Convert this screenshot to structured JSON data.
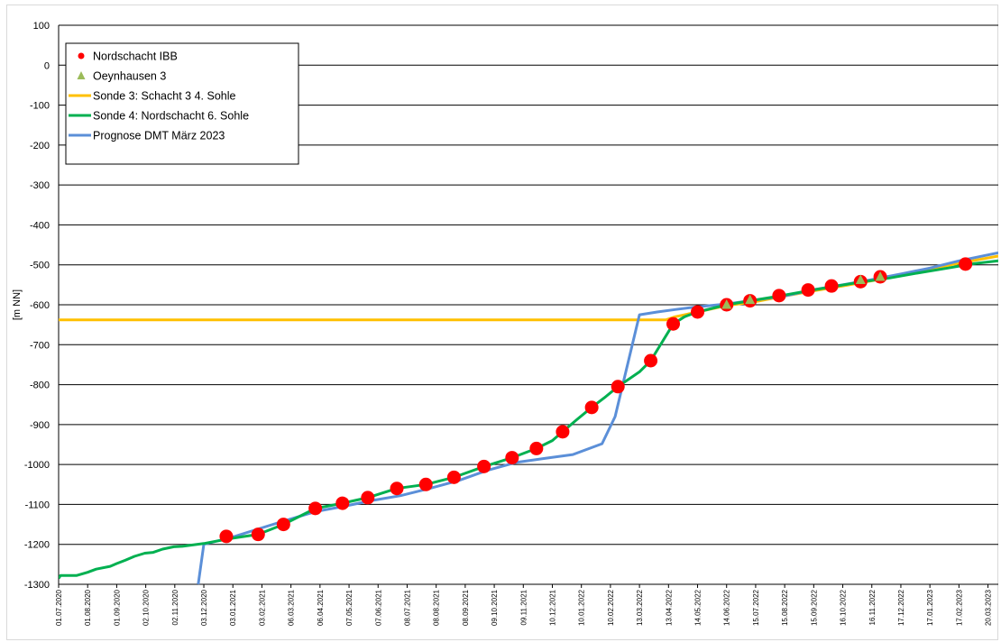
{
  "chart_data": {
    "type": "line",
    "title": "",
    "xlabel": "",
    "ylabel": "[m NN]",
    "ylim": [
      -1300,
      100
    ],
    "yticks": [
      100,
      0,
      -100,
      -200,
      -300,
      -400,
      -500,
      -600,
      -700,
      -800,
      -900,
      -1000,
      -1100,
      -1200,
      -1300
    ],
    "xlim": [
      "2020-07-01",
      "2023-03-31"
    ],
    "x_tick_labels": [
      "01.07.2020",
      "01.08.2020",
      "01.09.2020",
      "02.10.2020",
      "02.11.2020",
      "03.12.2020",
      "03.01.2021",
      "03.02.2021",
      "06.03.2021",
      "06.04.2021",
      "07.05.2021",
      "07.06.2021",
      "08.07.2021",
      "08.08.2021",
      "08.09.2021",
      "09.10.2021",
      "09.11.2021",
      "10.12.2021",
      "10.01.2022",
      "10.02.2022",
      "13.03.2022",
      "13.04.2022",
      "14.05.2022",
      "14.06.2022",
      "15.07.2022",
      "15.08.2022",
      "15.09.2022",
      "16.10.2022",
      "16.11.2022",
      "17.12.2022",
      "17.01.2023",
      "17.02.2023",
      "20.03.2023"
    ],
    "grid": "horizontal",
    "legend_position": "top-left",
    "series": [
      {
        "name": "Nordschacht IBB",
        "kind": "marker-circle",
        "color": "#ff0000",
        "points": [
          [
            "2020-12-27",
            -1180
          ],
          [
            "2021-01-30",
            -1175
          ],
          [
            "2021-02-26",
            -1150
          ],
          [
            "2021-04-01",
            -1110
          ],
          [
            "2021-04-30",
            -1097
          ],
          [
            "2021-05-27",
            -1083
          ],
          [
            "2021-06-27",
            -1060
          ],
          [
            "2021-07-28",
            -1050
          ],
          [
            "2021-08-27",
            -1032
          ],
          [
            "2021-09-28",
            -1005
          ],
          [
            "2021-10-28",
            -983
          ],
          [
            "2021-11-23",
            -960
          ],
          [
            "2021-12-21",
            -918
          ],
          [
            "2022-01-21",
            -857
          ],
          [
            "2022-02-18",
            -805
          ],
          [
            "2022-03-25",
            -740
          ],
          [
            "2022-04-18",
            -648
          ],
          [
            "2022-05-14",
            -618
          ],
          [
            "2022-06-14",
            -600
          ],
          [
            "2022-07-09",
            -590
          ],
          [
            "2022-08-09",
            -577
          ],
          [
            "2022-09-09",
            -563
          ],
          [
            "2022-10-04",
            -553
          ],
          [
            "2022-11-04",
            -542
          ],
          [
            "2022-11-25",
            -530
          ],
          [
            "2023-02-24",
            -498
          ]
        ]
      },
      {
        "name": "Oeynhausen 3",
        "kind": "marker-triangle",
        "color": "#9bbb59",
        "points": [
          [
            "2022-06-14",
            -600
          ],
          [
            "2022-07-09",
            -588
          ],
          [
            "2022-11-04",
            -538
          ],
          [
            "2022-11-25",
            -530
          ]
        ]
      },
      {
        "name": "Sonde 3: Schacht 3 4. Sohle",
        "kind": "line",
        "color": "#ffc000",
        "points": [
          [
            "2020-07-01",
            -638
          ],
          [
            "2022-04-10",
            -638
          ],
          [
            "2022-04-20",
            -630
          ],
          [
            "2022-05-14",
            -618
          ],
          [
            "2022-06-14",
            -602
          ],
          [
            "2022-07-15",
            -592
          ],
          [
            "2022-08-15",
            -578
          ],
          [
            "2022-09-15",
            -565
          ],
          [
            "2022-10-16",
            -553
          ],
          [
            "2022-11-16",
            -540
          ],
          [
            "2022-12-17",
            -525
          ],
          [
            "2023-01-17",
            -510
          ],
          [
            "2023-02-17",
            -496
          ],
          [
            "2023-03-31",
            -478
          ]
        ]
      },
      {
        "name": "Sonde 4: Nordschacht 6. Sohle",
        "kind": "line",
        "color": "#00b050",
        "points": [
          [
            "2020-07-01",
            -1285
          ],
          [
            "2020-07-03",
            -1278
          ],
          [
            "2020-07-20",
            -1278
          ],
          [
            "2020-08-01",
            -1270
          ],
          [
            "2020-08-10",
            -1262
          ],
          [
            "2020-08-25",
            -1255
          ],
          [
            "2020-09-01",
            -1248
          ],
          [
            "2020-09-10",
            -1240
          ],
          [
            "2020-09-20",
            -1230
          ],
          [
            "2020-10-01",
            -1222
          ],
          [
            "2020-10-10",
            -1220
          ],
          [
            "2020-10-20",
            -1212
          ],
          [
            "2020-11-01",
            -1206
          ],
          [
            "2020-11-10",
            -1205
          ],
          [
            "2020-12-03",
            -1198
          ],
          [
            "2021-01-01",
            -1185
          ],
          [
            "2021-01-30",
            -1175
          ],
          [
            "2021-02-26",
            -1150
          ],
          [
            "2021-04-01",
            -1110
          ],
          [
            "2021-04-30",
            -1097
          ],
          [
            "2021-05-27",
            -1083
          ],
          [
            "2021-06-27",
            -1060
          ],
          [
            "2021-07-28",
            -1050
          ],
          [
            "2021-08-27",
            -1032
          ],
          [
            "2021-09-28",
            -1005
          ],
          [
            "2021-10-28",
            -983
          ],
          [
            "2021-11-23",
            -960
          ],
          [
            "2021-12-10",
            -940
          ],
          [
            "2021-12-21",
            -918
          ],
          [
            "2022-01-05",
            -888
          ],
          [
            "2022-01-21",
            -857
          ],
          [
            "2022-02-05",
            -830
          ],
          [
            "2022-02-18",
            -805
          ],
          [
            "2022-03-13",
            -768
          ],
          [
            "2022-03-25",
            -740
          ],
          [
            "2022-04-05",
            -698
          ],
          [
            "2022-04-18",
            -648
          ],
          [
            "2022-04-30",
            -630
          ],
          [
            "2022-05-14",
            -618
          ],
          [
            "2022-06-14",
            -600
          ],
          [
            "2022-07-09",
            -590
          ],
          [
            "2022-08-09",
            -578
          ],
          [
            "2022-09-09",
            -565
          ],
          [
            "2022-10-04",
            -555
          ],
          [
            "2022-11-04",
            -543
          ],
          [
            "2022-12-05",
            -533
          ],
          [
            "2023-01-05",
            -520
          ],
          [
            "2023-02-05",
            -508
          ],
          [
            "2023-03-05",
            -497
          ],
          [
            "2023-03-31",
            -490
          ]
        ]
      },
      {
        "name": "Prognose DMT März 2023",
        "kind": "line",
        "color": "#5b8fd8",
        "points": [
          [
            "2020-11-27",
            -1300
          ],
          [
            "2020-12-03",
            -1200
          ],
          [
            "2021-01-01",
            -1183
          ],
          [
            "2021-02-01",
            -1160
          ],
          [
            "2021-03-01",
            -1140
          ],
          [
            "2021-04-01",
            -1118
          ],
          [
            "2021-05-01",
            -1105
          ],
          [
            "2021-06-01",
            -1090
          ],
          [
            "2021-07-01",
            -1078
          ],
          [
            "2021-08-01",
            -1060
          ],
          [
            "2021-09-01",
            -1040
          ],
          [
            "2021-10-01",
            -1015
          ],
          [
            "2021-11-01",
            -995
          ],
          [
            "2021-12-01",
            -985
          ],
          [
            "2022-01-01",
            -975
          ],
          [
            "2022-02-01",
            -948
          ],
          [
            "2022-02-15",
            -880
          ],
          [
            "2022-03-13",
            -625
          ],
          [
            "2022-04-01",
            -618
          ],
          [
            "2022-04-20",
            -612
          ],
          [
            "2022-05-14",
            -605
          ],
          [
            "2022-06-14",
            -598
          ],
          [
            "2022-07-15",
            -588
          ],
          [
            "2022-08-15",
            -578
          ],
          [
            "2022-09-15",
            -562
          ],
          [
            "2022-10-16",
            -550
          ],
          [
            "2022-11-16",
            -537
          ],
          [
            "2022-12-17",
            -523
          ],
          [
            "2023-01-17",
            -508
          ],
          [
            "2023-02-17",
            -490
          ],
          [
            "2023-03-31",
            -470
          ]
        ]
      }
    ]
  }
}
